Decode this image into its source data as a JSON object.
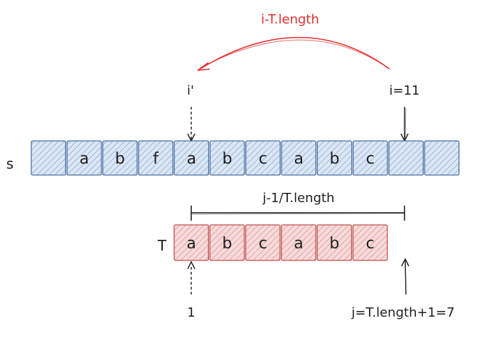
{
  "top_label": "i-T.length",
  "i_prime_label": "i'",
  "i_label": "i=11",
  "s_label": "s",
  "t_label": "T",
  "span_label": "j-1/T.length",
  "one_label": "1",
  "j_label": "j=T.length+1=7",
  "s_cells": [
    "",
    "a",
    "b",
    "f",
    "a",
    "b",
    "c",
    "a",
    "b",
    "c",
    "",
    ""
  ],
  "t_cells": [
    "a",
    "b",
    "c",
    "a",
    "b",
    "c"
  ],
  "colors": {
    "s_fill": "#b7cbe6",
    "s_stroke": "#4a6fa5",
    "t_fill": "#f1c4c4",
    "t_stroke": "#c0504d",
    "red_arrow": "#e03131",
    "ink": "#1e1e1e"
  }
}
